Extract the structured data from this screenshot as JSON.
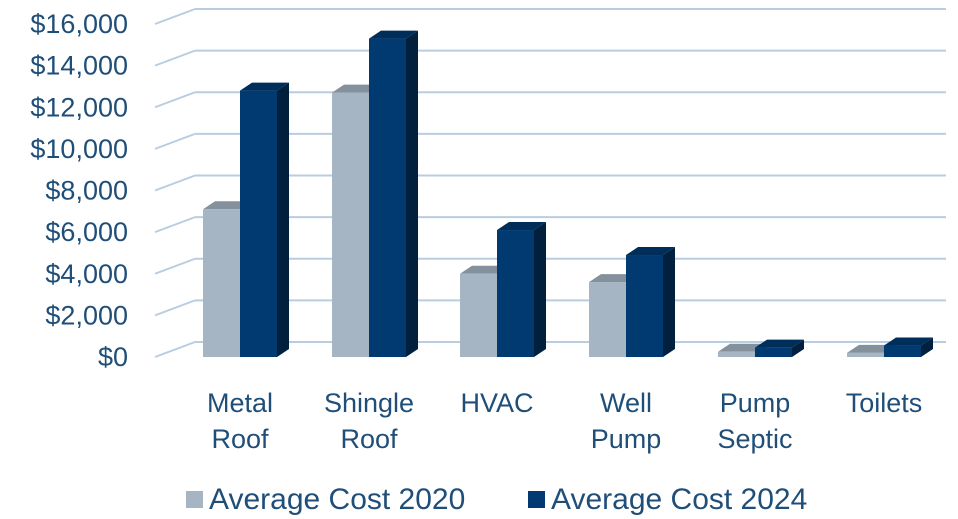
{
  "chart_data": {
    "type": "bar",
    "style": "3d-clustered-column",
    "categories": [
      [
        "Metal",
        "Roof"
      ],
      [
        "Shingle",
        "Roof"
      ],
      [
        "HVAC"
      ],
      [
        "Well",
        "Pump"
      ],
      [
        "Pump",
        "Septic"
      ],
      [
        "Toilets"
      ]
    ],
    "series": [
      {
        "name": "Average Cost 2020",
        "color": "#a5b5c4",
        "values": [
          7100,
          12700,
          4000,
          3600,
          250,
          200
        ]
      },
      {
        "name": "Average Cost 2024",
        "color": "#003a70",
        "values": [
          12800,
          15300,
          6100,
          4900,
          450,
          550
        ]
      }
    ],
    "ylim": [
      0,
      16000
    ],
    "yticks": [
      "$0",
      "$2,000",
      "$4,000",
      "$6,000",
      "$8,000",
      "$10,000",
      "$12,000",
      "$14,000",
      "$16,000"
    ],
    "grid": true,
    "legend_position": "bottom"
  }
}
